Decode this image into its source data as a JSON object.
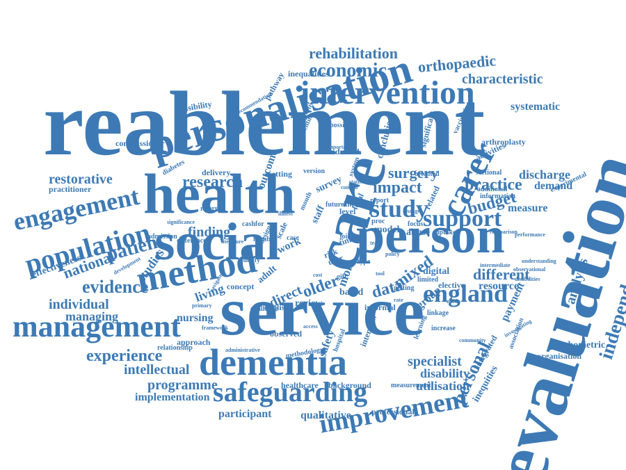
{
  "color": "#3d7ab5",
  "words": {
    "reablement": "reablement",
    "evaluation": "evaluation",
    "service": "service",
    "care": "care",
    "health": "health",
    "social": "social",
    "person": "person",
    "personalisation": "personalisation",
    "intervention": "intervention",
    "dementia": "dementia",
    "safeguarding": "safeguarding",
    "management": "management",
    "method": "method",
    "engagement": "engagement",
    "population": "population",
    "improvement": "improvement",
    "carer": "carer",
    "independence": "independence",
    "england": "england",
    "study": "study",
    "support": "support",
    "economic": "economic",
    "rehabilitation": "rehabilitation",
    "orthopaedic": "orthopaedic",
    "characteristic": "characteristic",
    "evidence": "evidence",
    "experience": "experience",
    "personal": "personal",
    "research": "research",
    "impact": "impact",
    "practice": "practice",
    "budget": "budget",
    "patient": "patient",
    "national": "national",
    "restorative": "restorative",
    "individual": "individual",
    "managing": "managing",
    "intellectual": "intellectual",
    "programme": "programme",
    "implementation": "implementation",
    "participant": "participant",
    "qualitative": "qualitative",
    "professional": "professional",
    "specialist": "specialist",
    "disability": "disability",
    "utilisation": "utilisation",
    "different": "different",
    "resource": "resource",
    "mixed": "mixed",
    "data": "data",
    "older": "older",
    "surgery": "surgery",
    "finding": "finding",
    "systematic": "systematic",
    "analysis": "analysis",
    "psychometric": "psychometric",
    "organisation": "organisation",
    "discharge": "discharge",
    "demand": "demand",
    "measure": "measure",
    "arthroplasty": "arthroplasty",
    "activities": "activities",
    "inequalities": "inequalities",
    "feasibility": "feasibility",
    "pathway": "pathway",
    "commissioner": "commissioner",
    "practitioner": "practitioner",
    "effectiveness": "effectiveness",
    "studies": "studies",
    "nursing": "nursing",
    "living": "living",
    "direct": "direct",
    "review": "review",
    "group": "group",
    "model": "model",
    "abuse": "abuse",
    "digital": "digital",
    "elective": "elective",
    "payment": "payment",
    "inequities": "inequities",
    "healthcare": "healthcare",
    "background": "background",
    "measurement": "measurement",
    "approach": "approach",
    "relationship": "relationship",
    "english": "english",
    "safety": "safety",
    "interview": "interview",
    "delivery": "delivery",
    "diabetes": "diabetes",
    "setting": "setting",
    "version": "version",
    "outcome": "outcome",
    "objective": "objective",
    "admiral": "admiral",
    "conclusion": "conclusion",
    "significant": "significant",
    "oriented": "oriented",
    "sectional": "sectional",
    "additional": "additional",
    "information": "information",
    "experimental": "experimental",
    "uptake": "uptake",
    "focus": "focus",
    "related": "related",
    "survey": "survey",
    "level": "level",
    "knee": "knee",
    "proc": "proc",
    "local": "local",
    "referral": "referral",
    "cashfor": "cashfor",
    "admission": "admission",
    "difference": "difference",
    "concept": "concept",
    "observed": "observed",
    "based": "based",
    "informal": "informal",
    "work": "work",
    "time": "time",
    "more": "more",
    "possible": "possible",
    "quality": "quality",
    "design": "design",
    "scale": "scale",
    "staff": "staff",
    "vaccination": "vaccination",
    "limited": "limited",
    "linkage": "linkage",
    "increase": "increase",
    "association": "association",
    "integrated": "integrated",
    "learning": "learning",
    "number": "number",
    "challenge": "challenge",
    "methodology": "methodology",
    "hospital": "hospital",
    "adult": "adult",
    "system": "system",
    "report": "report",
    "future": "future",
    "case": "case",
    "user": "user",
    "risk": "risk",
    "type": "type",
    "gift": "gift",
    "getting": "getting",
    "joint": "joint",
    "month": "month",
    "implementing": "implementing",
    "important": "important",
    "disabilities": "disabilities",
    "performance": "performance",
    "observational": "observational",
    "comparison": "comparison",
    "community": "community",
    "investigating": "investigating",
    "administrative": "administrative",
    "development": "development",
    "recommendation": "recommendation",
    "framework": "framework",
    "primary": "primary",
    "literature": "literature",
    "navigate": "navigate",
    "significance": "significance",
    "intermediate": "intermediate",
    "understanding": "understanding",
    "statistic": "statistic",
    "illness": "illness",
    "control": "control",
    "tool": "tool",
    "cost": "cost",
    "team": "team",
    "policy": "policy",
    "access": "access",
    "rate": "rate",
    "change": "change",
    "need": "need"
  }
}
